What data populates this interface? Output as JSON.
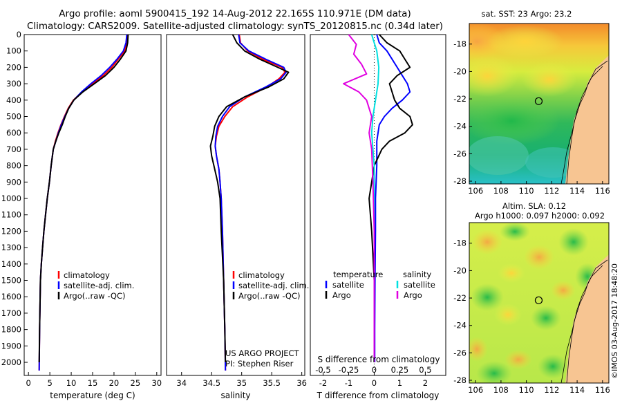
{
  "header": {
    "line1": "Argo profile: aoml 5900415_192 14-Aug-2012 22.165S 110.971E (DM data)",
    "line2": "Climatology: CARS2009. Satellite-adjusted climatology: synTS_20120815.nc (0.34d later)"
  },
  "credits": {
    "project_line1": "US ARGO PROJECT",
    "project_line2": "PI: Stephen Riser",
    "imos_stamp": "©IMOS 03-Aug-2017 18:48:20"
  },
  "colors": {
    "climatology": "#ff0000",
    "satellite": "#0000ff",
    "argo": "#000000",
    "s_satellite": "#00e0e0",
    "s_argo": "#e000e0",
    "land": "#f7c592",
    "coast": "#000000"
  },
  "chart_data": [
    {
      "id": "temperature",
      "type": "line",
      "xlabel": "temperature (deg C)",
      "ylabel": "",
      "xlim": [
        -1,
        31
      ],
      "ylim": [
        2080,
        0
      ],
      "xticks": [
        0,
        5,
        10,
        15,
        20,
        25,
        30
      ],
      "yticks": [
        0,
        100,
        200,
        300,
        400,
        500,
        600,
        700,
        800,
        900,
        1000,
        1100,
        1200,
        1300,
        1400,
        1500,
        1600,
        1700,
        1800,
        1900,
        2000
      ],
      "legend": [
        "climatology",
        "satellite-adj. clim.",
        "Argo(..raw -QC)"
      ],
      "series": [
        {
          "name": "climatology",
          "x": [
            23.2,
            23.0,
            22.5,
            21,
            19.5,
            17.5,
            15,
            12.5,
            10.5,
            9.3,
            8.4,
            7.6,
            6.9,
            6.3,
            5.8,
            5.3,
            4.9,
            4.4,
            4.0,
            3.6,
            3.3,
            3.0,
            2.8,
            2.6,
            2.5
          ],
          "y": [
            0,
            50,
            100,
            150,
            200,
            250,
            300,
            350,
            400,
            450,
            500,
            550,
            600,
            650,
            700,
            800,
            900,
            1000,
            1100,
            1200,
            1300,
            1400,
            1500,
            1800,
            2050
          ]
        },
        {
          "name": "satellite-adj. clim.",
          "x": [
            23.0,
            22.8,
            22.2,
            20.7,
            19,
            17,
            14.6,
            12.4,
            10.6,
            9.4,
            8.5,
            7.7,
            7.0,
            6.4,
            5.8,
            5.3,
            4.9,
            4.4,
            4.0,
            3.6,
            3.3,
            3.0,
            2.8,
            2.6,
            2.5
          ],
          "y": [
            0,
            50,
            100,
            150,
            200,
            250,
            300,
            350,
            400,
            450,
            500,
            550,
            600,
            650,
            700,
            800,
            900,
            1000,
            1100,
            1200,
            1300,
            1400,
            1500,
            1800,
            2050
          ]
        },
        {
          "name": "Argo(..raw -QC)",
          "x": [
            23.3,
            23.2,
            22.8,
            21.5,
            20,
            18,
            15.4,
            12.7,
            10.6,
            9.4,
            8.6,
            7.9,
            7.1,
            6.4,
            5.8,
            5.3,
            4.9,
            4.4,
            4.0,
            3.6,
            3.3,
            3.0,
            2.8,
            2.6,
            2.5
          ],
          "y": [
            0,
            50,
            100,
            150,
            200,
            250,
            300,
            350,
            400,
            450,
            500,
            550,
            600,
            650,
            700,
            800,
            900,
            1000,
            1100,
            1200,
            1300,
            1400,
            1500,
            1800,
            2000
          ]
        }
      ]
    },
    {
      "id": "salinity",
      "type": "line",
      "xlabel": "salinity",
      "ylabel": "",
      "xlim": [
        33.75,
        36.05
      ],
      "ylim": [
        2080,
        0
      ],
      "xticks": [
        34,
        34.5,
        35,
        35.5,
        36
      ],
      "legend": [
        "climatology",
        "satellite-adj. clim.",
        "Argo(..raw -QC)"
      ],
      "series": [
        {
          "name": "climatology",
          "x": [
            34.96,
            34.98,
            35.1,
            35.35,
            35.67,
            35.72,
            35.62,
            35.42,
            35.1,
            34.85,
            34.72,
            34.62,
            34.58,
            34.56,
            34.58,
            34.62,
            34.64,
            34.66,
            34.68,
            34.7,
            34.72,
            34.73
          ],
          "y": [
            0,
            50,
            100,
            150,
            200,
            230,
            270,
            320,
            380,
            440,
            500,
            560,
            620,
            680,
            740,
            820,
            900,
            1000,
            1200,
            1500,
            1800,
            2050
          ]
        },
        {
          "name": "satellite-adj. clim.",
          "x": [
            34.95,
            34.97,
            35.12,
            35.4,
            35.7,
            35.74,
            35.65,
            35.4,
            35.05,
            34.8,
            34.68,
            34.6,
            34.57,
            34.56,
            34.58,
            34.62,
            34.64,
            34.66,
            34.68,
            34.7,
            34.72,
            34.73
          ],
          "y": [
            0,
            50,
            100,
            150,
            200,
            230,
            270,
            320,
            380,
            440,
            500,
            560,
            620,
            680,
            740,
            820,
            900,
            1000,
            1200,
            1500,
            1800,
            2050
          ]
        },
        {
          "name": "Argo(..raw -QC)",
          "x": [
            34.85,
            34.92,
            35.05,
            35.3,
            35.6,
            35.78,
            35.7,
            35.45,
            35.05,
            34.75,
            34.62,
            34.55,
            34.52,
            34.48,
            34.5,
            34.55,
            34.6,
            34.64,
            34.66,
            34.7,
            34.72,
            34.73
          ],
          "y": [
            0,
            50,
            100,
            150,
            200,
            230,
            270,
            320,
            380,
            440,
            500,
            560,
            620,
            680,
            740,
            820,
            900,
            1000,
            1200,
            1500,
            1800,
            2000
          ]
        }
      ]
    },
    {
      "id": "differences",
      "type": "line",
      "xlabel": "T difference from climatology",
      "xlabel_top": "S difference from climatology",
      "xlim": [
        -2.5,
        2.8
      ],
      "ylim": [
        2080,
        0
      ],
      "xticks": [
        -2,
        -1,
        0,
        1,
        2
      ],
      "xticklabels": [
        "-2",
        "-1",
        "0",
        "1",
        "2"
      ],
      "sticks": [
        -0.5,
        -0.25,
        0,
        0.25,
        0.5
      ],
      "sticklabels": [
        "-0.5",
        "-0.25",
        "0",
        "0.25",
        "0.5"
      ],
      "legend_headers": [
        "temperature",
        "salinity"
      ],
      "legend": [
        "satellite",
        "Argo",
        "satellite",
        "Argo"
      ],
      "series": [
        {
          "name": "satellite",
          "quantity": "T",
          "x": [
            0.1,
            0.2,
            0.5,
            0.9,
            1.1,
            1.3,
            1.4,
            1.1,
            0.7,
            0.4,
            0.2,
            0.1,
            0.1,
            0.05,
            0.05,
            0.03,
            0.02,
            0.02
          ],
          "y": [
            0,
            50,
            100,
            200,
            250,
            300,
            350,
            400,
            450,
            500,
            550,
            650,
            800,
            1000,
            1200,
            1500,
            1800,
            2000
          ]
        },
        {
          "name": "Argo",
          "quantity": "T",
          "x": [
            0.2,
            0.5,
            1.0,
            1.2,
            1.4,
            0.9,
            0.6,
            0.7,
            0.8,
            1.0,
            1.4,
            1.5,
            1.2,
            0.6,
            0.3,
            0.0,
            -0.1,
            -0.2,
            -0.1,
            0.0,
            0.0
          ],
          "y": [
            0,
            50,
            100,
            150,
            200,
            250,
            300,
            350,
            400,
            450,
            500,
            550,
            600,
            650,
            700,
            800,
            900,
            1000,
            1200,
            1500,
            2000
          ]
        },
        {
          "name": "satellite",
          "quantity": "S",
          "x": [
            -0.1,
            0.0,
            0.1,
            0.18,
            0.15,
            0.05,
            -0.05,
            -0.1,
            -0.05,
            0.0,
            0.0,
            0.0,
            0.0
          ],
          "y": [
            0,
            50,
            100,
            200,
            300,
            400,
            500,
            600,
            700,
            800,
            1000,
            1500,
            2000
          ]
        },
        {
          "name": "Argo",
          "quantity": "S",
          "x": [
            -1.0,
            -0.7,
            -0.8,
            -0.5,
            -0.3,
            -1.2,
            -0.6,
            -0.3,
            -0.2,
            -0.1,
            -0.2,
            -0.1,
            -0.05,
            0.0,
            0.0
          ],
          "y": [
            0,
            60,
            120,
            180,
            240,
            300,
            350,
            400,
            450,
            500,
            600,
            700,
            900,
            1200,
            2000
          ]
        }
      ]
    },
    {
      "id": "sst_map",
      "type": "heatmap",
      "title": "sat. SST: 23 Argo: 23.2",
      "xlim": [
        105.5,
        116.5
      ],
      "ylim": [
        -28.2,
        -16.5
      ],
      "xticks": [
        106,
        108,
        110,
        112,
        114,
        116
      ],
      "yticks": [
        -18,
        -20,
        -22,
        -24,
        -26,
        -28
      ],
      "argo_position": {
        "lon": 110.971,
        "lat": -22.165
      }
    },
    {
      "id": "sla_map",
      "type": "heatmap",
      "title_line1": "Altim. SLA: 0.12",
      "title_line2": "Argo h1000: 0.097 h2000: 0.092",
      "xlim": [
        105.5,
        116.5
      ],
      "ylim": [
        -28.2,
        -16.5
      ],
      "xticks": [
        106,
        108,
        110,
        112,
        114,
        116
      ],
      "yticks": [
        -18,
        -20,
        -22,
        -24,
        -26,
        -28
      ],
      "argo_position": {
        "lon": 110.971,
        "lat": -22.165
      }
    }
  ]
}
